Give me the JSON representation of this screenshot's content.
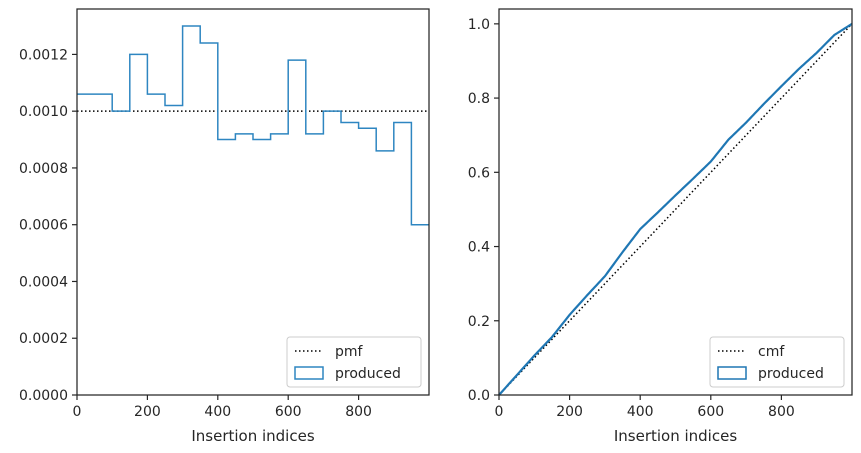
{
  "chart_data": [
    {
      "type": "histogram",
      "xlabel": "Insertion indices",
      "ylabel": "",
      "xlim": [
        0,
        1000
      ],
      "ylim": [
        0,
        0.00136
      ],
      "xticks": [
        0,
        200,
        400,
        600,
        800
      ],
      "xtick_labels": [
        "0",
        "200",
        "400",
        "600",
        "800"
      ],
      "yticks": [
        0,
        0.0002,
        0.0004,
        0.0006,
        0.0008,
        0.001,
        0.0012
      ],
      "ytick_labels": [
        "0.0000",
        "0.0002",
        "0.0004",
        "0.0006",
        "0.0008",
        "0.0010",
        "0.0012"
      ],
      "grid": false,
      "legend_position": "lower right",
      "series": [
        {
          "name": "pmf",
          "kind": "line",
          "style": "dotted",
          "color": "#000000",
          "x": [
            0,
            1000
          ],
          "y": [
            0.001,
            0.001
          ]
        },
        {
          "name": "produced",
          "kind": "step-histogram",
          "color": "#2e86c1",
          "bin_edges": [
            0,
            50,
            100,
            150,
            200,
            250,
            300,
            350,
            400,
            450,
            500,
            550,
            600,
            650,
            700,
            750,
            800,
            850,
            900,
            950,
            1000
          ],
          "values": [
            0.00106,
            0.00106,
            0.001,
            0.0012,
            0.00106,
            0.00102,
            0.0013,
            0.00124,
            0.0009,
            0.00092,
            0.0009,
            0.00092,
            0.00118,
            0.00092,
            0.001,
            0.00096,
            0.00094,
            0.00086,
            0.00096,
            0.0006
          ]
        }
      ]
    },
    {
      "type": "line",
      "xlabel": "Insertion indices",
      "ylabel": "",
      "xlim": [
        0,
        1000
      ],
      "ylim": [
        0,
        1.04
      ],
      "xticks": [
        0,
        200,
        400,
        600,
        800
      ],
      "xtick_labels": [
        "0",
        "200",
        "400",
        "600",
        "800"
      ],
      "yticks": [
        0,
        0.2,
        0.4,
        0.6,
        0.8,
        1.0
      ],
      "ytick_labels": [
        "0.0",
        "0.2",
        "0.4",
        "0.6",
        "0.8",
        "1.0"
      ],
      "grid": false,
      "legend_position": "lower right",
      "series": [
        {
          "name": "cmf",
          "kind": "line",
          "style": "dotted",
          "color": "#000000",
          "x": [
            0,
            1000
          ],
          "y": [
            0,
            1.0
          ]
        },
        {
          "name": "produced",
          "kind": "cumulative-step",
          "color": "#1f77b4",
          "x": [
            0,
            50,
            100,
            150,
            200,
            250,
            300,
            350,
            400,
            450,
            500,
            550,
            600,
            650,
            700,
            750,
            800,
            850,
            900,
            950,
            1000
          ],
          "y": [
            0,
            0.053,
            0.106,
            0.156,
            0.216,
            0.269,
            0.32,
            0.385,
            0.447,
            0.492,
            0.538,
            0.583,
            0.629,
            0.688,
            0.734,
            0.784,
            0.832,
            0.879,
            0.922,
            0.97,
            1.0
          ]
        }
      ]
    }
  ]
}
